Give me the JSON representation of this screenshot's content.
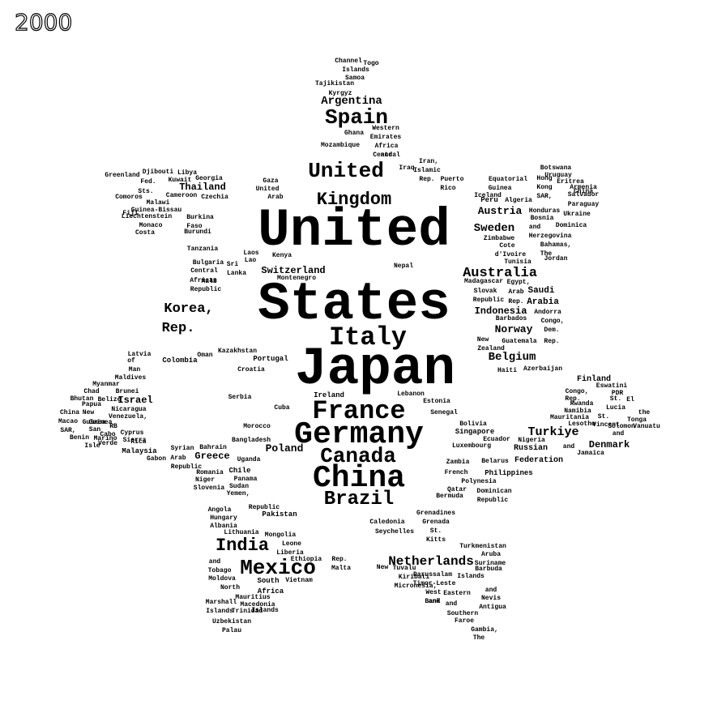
{
  "year": "2000",
  "colors": {
    "text": "#000000",
    "background": "#ffffff"
  },
  "words": [
    "United",
    "States",
    "Japan",
    "Germany",
    "China",
    "France",
    "United",
    "Kingdom",
    "Italy",
    "Spain",
    "Canada",
    "Brazil",
    "Mexico",
    "India",
    "Netherlands",
    "Australia",
    "Korea,",
    "Rep.",
    "Argentina",
    "Switzerland",
    "Belgium",
    "Sweden",
    "Austria",
    "Norway",
    "Turkiye",
    "Indonesia",
    "Poland",
    "Denmark",
    "Israel",
    "Thailand",
    "Greece",
    "Saudi",
    "Arabia",
    "Finland",
    "Russian",
    "Federation",
    "Chile",
    "Colombia",
    "Pakistan",
    "Ireland",
    "Portugal",
    "South",
    "Africa",
    "Malaysia",
    "Singapore",
    "Philippines",
    "Egypt,",
    "Arab",
    "Rep.",
    "New",
    "Zealand",
    "Venezuela,",
    "RB",
    "Peru",
    "Kazakhstan",
    "Ukraine",
    "Hungary",
    "Czechia",
    "Iran,",
    "Islamic",
    "Rep.",
    "Iraq",
    "Algeria",
    "Nigeria",
    "Bangladesh",
    "Morocco",
    "Romania",
    "Vietnam",
    "Syrian",
    "Arab",
    "Republic",
    "Lebanon",
    "Ecuador",
    "Cuba",
    "Estonia",
    "Slovak",
    "Republic",
    "Luxembourg",
    "Bolivia",
    "Guatemala",
    "Croatia",
    "Serbia",
    "Sri",
    "Lanka",
    "Tunisia",
    "Puerto",
    "Rico",
    "Dominican",
    "Republic",
    "Bahamas,",
    "The",
    "Kenya",
    "Senegal",
    "Uganda",
    "Cameroon",
    "Zimbabwe",
    "Cote",
    "d'Ivoire",
    "Mozambique",
    "Ghana",
    "Libya",
    "Bulgaria",
    "Belarus",
    "Qatar",
    "Oman",
    "Bahrain",
    "Slovenia",
    "Lithuania",
    "Latvia",
    "Cyprus",
    "Jamaica",
    "Panama",
    "Uruguay",
    "Hong",
    "Kong",
    "SAR,",
    "China",
    "Macao",
    "SAR,",
    "China",
    "Mongolia",
    "Nepal",
    "Angola",
    "Albania",
    "Armenia",
    "Georgia",
    "Tanzania",
    "Zambia",
    "Bermuda",
    "Iceland",
    "Botswana",
    "Namibia",
    "Madagascar",
    "Malta",
    "Mauritius",
    "Haiti",
    "Azerbaijan",
    "Congo,",
    "Dem.",
    "Rep.",
    "Andorra",
    "Barbados",
    "Jordan",
    "Honduras",
    "Bosnia",
    "and",
    "Herzegovina",
    "Dominica",
    "Montenegro",
    "Fiji",
    "Malawi",
    "Mali",
    "Burkina",
    "Faso",
    "Burundi",
    "Chad",
    "Niger",
    "Gabon",
    "Cabo",
    "Verde",
    "Guinea",
    "Guinea-Bissau",
    "Equatorial",
    "Guinea",
    "Eritrea",
    "Djibouti",
    "Rwanda",
    "Sierra",
    "Leone",
    "Liberia",
    "Lesotho",
    "Eswatini",
    "Congo,",
    "Rep.",
    "Gambia,",
    "The",
    "Benin",
    "Togo",
    "Central",
    "African",
    "Republic",
    "Mauritania",
    "Comoros",
    "Maldives",
    "Bhutan",
    "Laos",
    "Lao",
    "PDR",
    "Myanmar",
    "Ethiopia",
    "Sudan",
    "Yemen,",
    "Rep.",
    "Tajikistan",
    "Kyrgyz",
    "Republic",
    "Turkmenistan",
    "Uzbekistan",
    "Moldova",
    "North",
    "Macedonia",
    "Trinidad",
    "and",
    "Tobago",
    "St.",
    "Lucia",
    "St.",
    "Vincent",
    "and",
    "the",
    "Grenadines",
    "Grenada",
    "St.",
    "Kitts",
    "and",
    "Nevis",
    "Antigua",
    "and",
    "Barbuda",
    "Aruba",
    "Suriname",
    "Costa",
    "Rica",
    "Belize",
    "Nicaragua",
    "El",
    "Salvador",
    "Paraguay",
    "Solomon",
    "Islands",
    "Samoa",
    "Tonga",
    "Vanuatu",
    "Palau",
    "Tuvalu",
    "Kiribati",
    "Micronesia,",
    "Fed.",
    "Sts.",
    "Marshall",
    "Islands",
    "Faroe",
    "Islands",
    "Greenland",
    "Liechtenstein",
    "Monaco",
    "San",
    "Marino",
    "Isle",
    "of",
    "Man",
    "Channel",
    "Islands",
    "French",
    "Polynesia",
    "New",
    "Caledonia",
    "Seychelles",
    "Brunei",
    "Darussalam",
    "Timor-Leste",
    "West",
    "Bank",
    "and",
    "Gaza",
    "United",
    "Arab",
    "Emirates",
    "Western",
    "Africa",
    "and",
    "Central",
    "Eastern",
    "and",
    "Southern",
    "Papua",
    "New",
    "Guinea",
    "Kuwait"
  ]
}
